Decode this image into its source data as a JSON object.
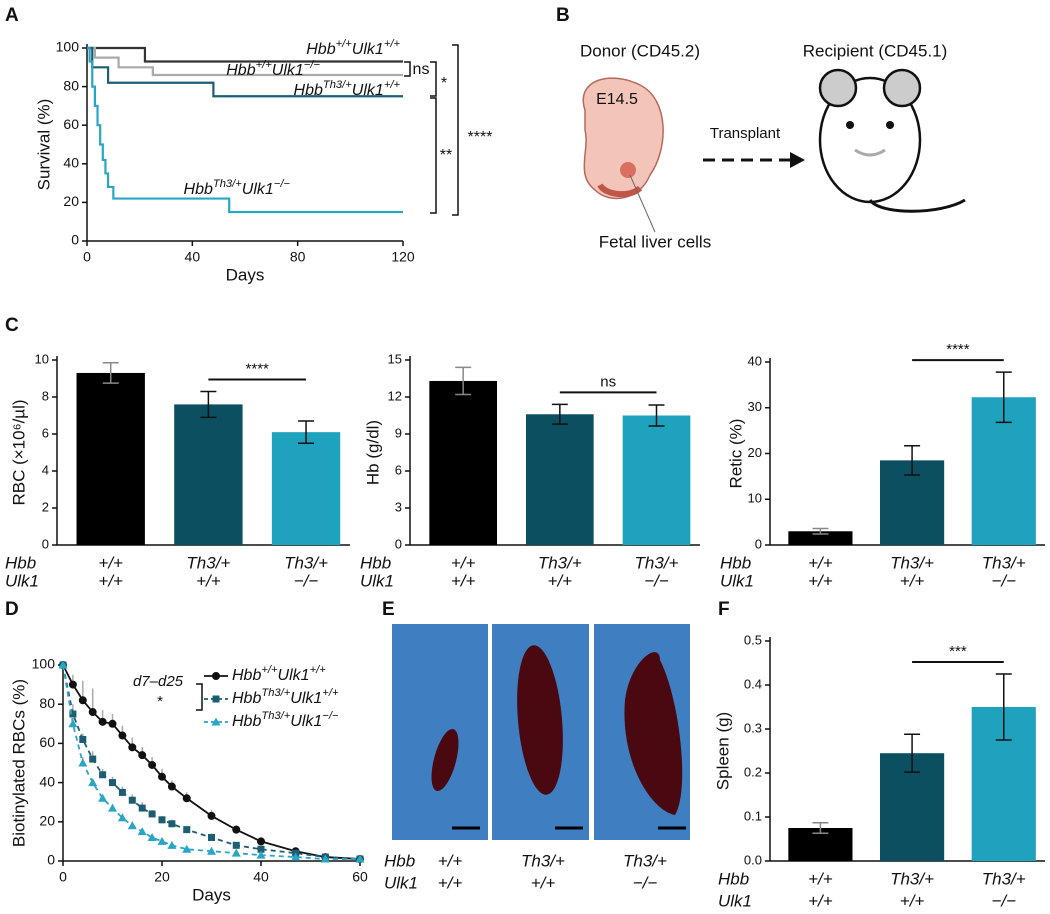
{
  "panel_labels": [
    "A",
    "B",
    "C",
    "D",
    "E",
    "F"
  ],
  "chart_data": [
    {
      "type": "step",
      "ylabel": "Survival (%)",
      "xlabel": "Days",
      "xlim": [
        0,
        120
      ],
      "xticks": [
        0,
        40,
        80,
        120
      ],
      "ylim": [
        0,
        100
      ],
      "yticks": [
        0,
        20,
        40,
        60,
        80,
        100
      ],
      "series": [
        {
          "name": "Hbb+/+Ulk1+/+",
          "color": "#333333",
          "x": [
            0,
            22,
            120
          ],
          "values": [
            100,
            93,
            93
          ]
        },
        {
          "name": "Hbb+/+Ulk1−/−",
          "color": "#aaaaaa",
          "x": [
            0,
            3,
            12,
            25,
            120
          ],
          "values": [
            100,
            95,
            90,
            86,
            86
          ]
        },
        {
          "name": "HbbTh3/+Ulk1+/+",
          "color": "#1d5d72",
          "x": [
            0,
            2,
            8,
            48,
            120
          ],
          "values": [
            100,
            90,
            82,
            75,
            75
          ]
        },
        {
          "name": "HbbTh3/+Ulk1−/−",
          "color": "#29a6c4",
          "x": [
            0,
            1,
            2,
            3,
            4,
            5,
            6,
            7,
            8,
            10,
            54,
            120
          ],
          "values": [
            100,
            93,
            80,
            70,
            60,
            50,
            42,
            35,
            28,
            22,
            15,
            15
          ]
        }
      ],
      "annotations": [
        "ns",
        "*",
        "**",
        "****"
      ]
    },
    {
      "type": "bar",
      "ylabel": "RBC (×10⁶/µl)",
      "row_labels": [
        "Hbb",
        "Ulk1"
      ],
      "categories": [
        [
          "+/+",
          "+/+"
        ],
        [
          "Th3/+",
          "+/+"
        ],
        [
          "Th3/+",
          "−/−"
        ]
      ],
      "values": [
        9.3,
        7.6,
        6.1
      ],
      "errors": [
        0.55,
        0.7,
        0.6
      ],
      "colors": [
        "#000000",
        "#0b4f60",
        "#1fa2bd"
      ],
      "ylim": [
        0,
        10
      ],
      "yticks": [
        0,
        2,
        4,
        6,
        8,
        10
      ],
      "annotation": "****"
    },
    {
      "type": "bar",
      "ylabel": "Hb (g/dl)",
      "row_labels": [
        "Hbb",
        "Ulk1"
      ],
      "categories": [
        [
          "+/+",
          "+/+"
        ],
        [
          "Th3/+",
          "+/+"
        ],
        [
          "Th3/+",
          "−/−"
        ]
      ],
      "values": [
        13.3,
        10.6,
        10.5
      ],
      "errors": [
        1.1,
        0.8,
        0.85
      ],
      "colors": [
        "#000000",
        "#0b4f60",
        "#1fa2bd"
      ],
      "ylim": [
        0,
        15
      ],
      "yticks": [
        0,
        3,
        6,
        9,
        12,
        15
      ],
      "annotation": "ns"
    },
    {
      "type": "bar",
      "ylabel": "Retic (%)",
      "row_labels": [
        "Hbb",
        "Ulk1"
      ],
      "categories": [
        [
          "+/+",
          "+/+"
        ],
        [
          "Th3/+",
          "+/+"
        ],
        [
          "Th3/+",
          "−/−"
        ]
      ],
      "values": [
        3.0,
        18.5,
        32.3
      ],
      "errors": [
        0.6,
        3.2,
        5.5
      ],
      "colors": [
        "#000000",
        "#0b4f60",
        "#1fa2bd"
      ],
      "ylim": [
        0,
        40
      ],
      "yticks": [
        0,
        10,
        20,
        30,
        40
      ],
      "annotation": "****"
    },
    {
      "type": "line",
      "ylabel": "Biotinylated RBCs (%)",
      "xlabel": "Days",
      "xlim": [
        0,
        60
      ],
      "xticks": [
        0,
        20,
        40,
        60
      ],
      "ylim": [
        0,
        100
      ],
      "yticks": [
        0,
        20,
        40,
        60,
        80,
        100
      ],
      "series": [
        {
          "name": "Hbb+/+Ulk1+/+",
          "color": "#111111",
          "marker": "circle",
          "dashed": false,
          "x": [
            0,
            2,
            4,
            6,
            8,
            10,
            12,
            14,
            16,
            18,
            20,
            22,
            25,
            30,
            35,
            40,
            47,
            53,
            60
          ],
          "values": [
            100,
            90,
            82,
            76,
            71,
            70,
            64,
            58,
            54,
            49,
            43,
            38,
            32,
            23,
            16,
            10,
            5,
            2,
            1
          ],
          "errors": [
            0,
            5,
            10,
            12,
            6,
            5,
            5,
            5,
            4,
            4,
            4,
            3,
            3,
            3,
            2,
            2,
            1,
            1,
            0
          ]
        },
        {
          "name": "HbbTh3/+Ulk1+/+",
          "color": "#1d5d72",
          "marker": "square",
          "dashed": true,
          "x": [
            0,
            2,
            4,
            6,
            8,
            10,
            12,
            14,
            16,
            18,
            20,
            22,
            25,
            30,
            35,
            40,
            47,
            53,
            60
          ],
          "values": [
            100,
            75,
            62,
            52,
            44,
            40,
            35,
            31,
            27,
            24,
            21,
            19,
            16,
            12,
            8,
            6,
            4,
            2,
            1
          ],
          "errors": [
            0,
            5,
            3,
            4,
            3,
            3,
            3,
            3,
            3,
            2,
            2,
            2,
            2,
            2,
            1,
            1,
            1,
            0,
            0
          ]
        },
        {
          "name": "HbbTh3/+Ulk1−/−",
          "color": "#29a6c4",
          "marker": "triangle",
          "dashed": true,
          "x": [
            0,
            2,
            4,
            6,
            8,
            10,
            12,
            14,
            16,
            18,
            20,
            22,
            25,
            30,
            35,
            40,
            47,
            53,
            60
          ],
          "values": [
            100,
            70,
            50,
            40,
            32,
            27,
            22,
            18,
            15,
            12,
            10,
            8,
            6,
            5,
            4,
            3,
            2,
            1,
            1
          ],
          "errors": [
            0,
            3,
            3,
            2,
            2,
            2,
            2,
            2,
            1,
            1,
            1,
            1,
            1,
            1,
            1,
            1,
            0,
            0,
            0
          ]
        }
      ],
      "annotations": [
        "d7–d25",
        "*"
      ]
    },
    {
      "type": "bar",
      "ylabel": "Spleen (g)",
      "row_labels": [
        "Hbb",
        "Ulk1"
      ],
      "categories": [
        [
          "+/+",
          "+/+"
        ],
        [
          "Th3/+",
          "+/+"
        ],
        [
          "Th3/+",
          "−/−"
        ]
      ],
      "values": [
        0.075,
        0.245,
        0.35
      ],
      "errors": [
        0.012,
        0.043,
        0.075
      ],
      "colors": [
        "#000000",
        "#0b4f60",
        "#1fa2bd"
      ],
      "ylim": [
        0,
        0.5
      ],
      "yticks": [
        {
          "value": 0,
          "label": "0.0"
        },
        0.1,
        0.2,
        0.3,
        0.4,
        0.5
      ],
      "annotation": "***"
    }
  ],
  "diagram": {
    "donor": "Donor (CD45.2)",
    "stage": "E14.5",
    "arrow": "Transplant",
    "recipient": "Recipient (CD45.1)",
    "cells": "Fetal liver cells"
  },
  "photos": {
    "row_labels": [
      "Hbb",
      "Ulk1"
    ],
    "columns": [
      [
        "+/+",
        "+/+"
      ],
      [
        "Th3/+",
        "+/+"
      ],
      [
        "Th3/+",
        "−/−"
      ]
    ]
  }
}
